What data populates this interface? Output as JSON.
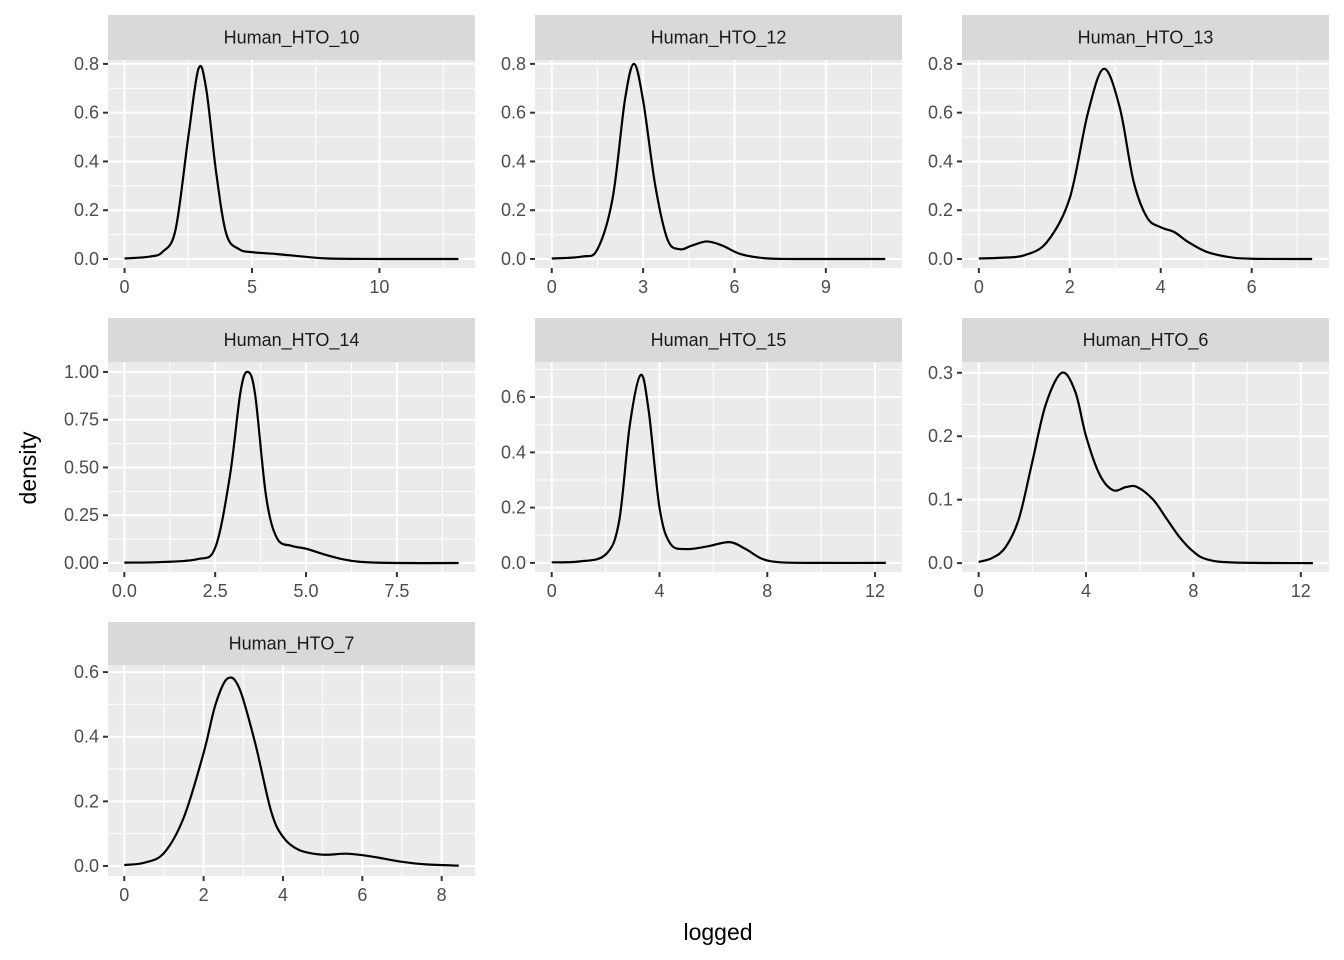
{
  "chart_data": {
    "type": "line",
    "subtype": "density facets",
    "xlabel": "logged",
    "ylabel": "density",
    "grid": true,
    "colors": {
      "panel_bg": "#ebebeb",
      "strip_bg": "#d9d9d9",
      "grid": "#ffffff",
      "line": "#000000"
    },
    "panels": [
      {
        "title": "Human_HTO_10",
        "xlim": [
          -0.65,
          13.75
        ],
        "ylim": [
          -0.037,
          0.816
        ],
        "xticks": [
          0,
          5,
          10
        ],
        "xtick_labels": [
          "0",
          "5",
          "10"
        ],
        "yticks": [
          0,
          0.2,
          0.4,
          0.6,
          0.8
        ],
        "ytick_labels": [
          "0.0",
          "0.2",
          "0.4",
          "0.6",
          "0.8"
        ],
        "x": [
          0,
          1,
          1.5,
          2,
          2.5,
          2.9,
          3.2,
          3.6,
          4,
          4.5,
          5,
          6,
          7,
          8,
          10,
          13.1
        ],
        "y": [
          0.002,
          0.01,
          0.03,
          0.12,
          0.5,
          0.78,
          0.7,
          0.35,
          0.1,
          0.04,
          0.028,
          0.02,
          0.01,
          0.002,
          0,
          0
        ]
      },
      {
        "title": "Human_HTO_12",
        "xlim": [
          -0.55,
          11.5
        ],
        "ylim": [
          -0.037,
          0.816
        ],
        "xticks": [
          0,
          3,
          6,
          9
        ],
        "xtick_labels": [
          "0",
          "3",
          "6",
          "9"
        ],
        "yticks": [
          0,
          0.2,
          0.4,
          0.6,
          0.8
        ],
        "ytick_labels": [
          "0.0",
          "0.2",
          "0.4",
          "0.6",
          "0.8"
        ],
        "x": [
          0,
          1,
          1.5,
          2,
          2.4,
          2.7,
          3,
          3.4,
          3.8,
          4.2,
          4.6,
          5.1,
          5.6,
          6.2,
          7,
          8,
          10.95
        ],
        "y": [
          0.002,
          0.01,
          0.04,
          0.25,
          0.65,
          0.8,
          0.65,
          0.3,
          0.08,
          0.04,
          0.055,
          0.072,
          0.055,
          0.02,
          0.003,
          0,
          0
        ]
      },
      {
        "title": "Human_HTO_13",
        "xlim": [
          -0.37,
          7.7
        ],
        "ylim": [
          -0.037,
          0.816
        ],
        "xticks": [
          0,
          2,
          4,
          6
        ],
        "xtick_labels": [
          "0",
          "2",
          "4",
          "6"
        ],
        "yticks": [
          0,
          0.2,
          0.4,
          0.6,
          0.8
        ],
        "ytick_labels": [
          "0.0",
          "0.2",
          "0.4",
          "0.6",
          "0.8"
        ],
        "x": [
          0,
          0.5,
          1,
          1.5,
          2,
          2.4,
          2.75,
          3.1,
          3.4,
          3.7,
          4,
          4.3,
          4.6,
          5,
          5.5,
          6,
          7.33
        ],
        "y": [
          0.002,
          0.005,
          0.015,
          0.07,
          0.25,
          0.6,
          0.78,
          0.62,
          0.32,
          0.17,
          0.13,
          0.11,
          0.07,
          0.03,
          0.008,
          0.001,
          0
        ]
      },
      {
        "title": "Human_HTO_14",
        "xlim": [
          -0.45,
          9.65
        ],
        "ylim": [
          -0.047,
          1.052
        ],
        "xticks": [
          0,
          2.5,
          5,
          7.5
        ],
        "xtick_labels": [
          "0.0",
          "2.5",
          "5.0",
          "7.5"
        ],
        "yticks": [
          0,
          0.25,
          0.5,
          0.75,
          1
        ],
        "ytick_labels": [
          "0.00",
          "0.25",
          "0.50",
          "0.75",
          "1.00"
        ],
        "x": [
          0,
          1,
          2,
          2.5,
          2.9,
          3.2,
          3.4,
          3.6,
          3.9,
          4.2,
          4.6,
          5,
          5.5,
          6,
          6.5,
          7.5,
          9.2
        ],
        "y": [
          0.002,
          0.005,
          0.02,
          0.08,
          0.45,
          0.9,
          1.0,
          0.88,
          0.35,
          0.13,
          0.09,
          0.075,
          0.045,
          0.02,
          0.006,
          0,
          0
        ]
      },
      {
        "title": "Human_HTO_15",
        "xlim": [
          -0.62,
          13.0
        ],
        "ylim": [
          -0.033,
          0.727
        ],
        "xticks": [
          0,
          4,
          8,
          12
        ],
        "xtick_labels": [
          "0",
          "4",
          "8",
          "12"
        ],
        "yticks": [
          0,
          0.2,
          0.4,
          0.6
        ],
        "ytick_labels": [
          "0.0",
          "0.2",
          "0.4",
          "0.6"
        ],
        "x": [
          0,
          1,
          2,
          2.5,
          2.9,
          3.3,
          3.6,
          4,
          4.4,
          5,
          5.8,
          6.6,
          7.2,
          7.8,
          8.5,
          10,
          12.4
        ],
        "y": [
          0.002,
          0.005,
          0.03,
          0.15,
          0.5,
          0.68,
          0.55,
          0.2,
          0.07,
          0.05,
          0.06,
          0.075,
          0.05,
          0.015,
          0.002,
          0,
          0
        ]
      },
      {
        "title": "Human_HTO_6",
        "xlim": [
          -0.62,
          13.05
        ],
        "ylim": [
          -0.014,
          0.317
        ],
        "xticks": [
          0,
          4,
          8,
          12
        ],
        "xtick_labels": [
          "0",
          "4",
          "8",
          "12"
        ],
        "yticks": [
          0,
          0.1,
          0.2,
          0.3
        ],
        "ytick_labels": [
          "0.0",
          "0.1",
          "0.2",
          "0.3"
        ],
        "x": [
          0,
          0.5,
          1,
          1.5,
          2,
          2.5,
          3.1,
          3.6,
          4,
          4.5,
          5,
          5.5,
          5.9,
          6.5,
          7,
          7.5,
          8,
          8.5,
          9.5,
          12.45
        ],
        "y": [
          0.002,
          0.008,
          0.025,
          0.07,
          0.16,
          0.25,
          0.3,
          0.27,
          0.2,
          0.14,
          0.115,
          0.12,
          0.12,
          0.1,
          0.07,
          0.04,
          0.018,
          0.006,
          0.001,
          0
        ]
      },
      {
        "title": "Human_HTO_7",
        "xlim": [
          -0.41,
          8.84
        ],
        "ylim": [
          -0.031,
          0.622
        ],
        "xticks": [
          0,
          2,
          4,
          6,
          8
        ],
        "xtick_labels": [
          "0",
          "2",
          "4",
          "6",
          "8"
        ],
        "yticks": [
          0,
          0.2,
          0.4,
          0.6
        ],
        "ytick_labels": [
          "0.0",
          "0.2",
          "0.4",
          "0.6"
        ],
        "x": [
          0,
          0.5,
          1,
          1.5,
          2,
          2.3,
          2.6,
          2.9,
          3.3,
          3.7,
          4,
          4.4,
          5,
          5.6,
          6.2,
          7,
          7.6,
          8.43
        ],
        "y": [
          0.003,
          0.01,
          0.04,
          0.15,
          0.35,
          0.5,
          0.58,
          0.55,
          0.38,
          0.17,
          0.09,
          0.05,
          0.035,
          0.038,
          0.03,
          0.013,
          0.005,
          0.001
        ]
      }
    ]
  }
}
